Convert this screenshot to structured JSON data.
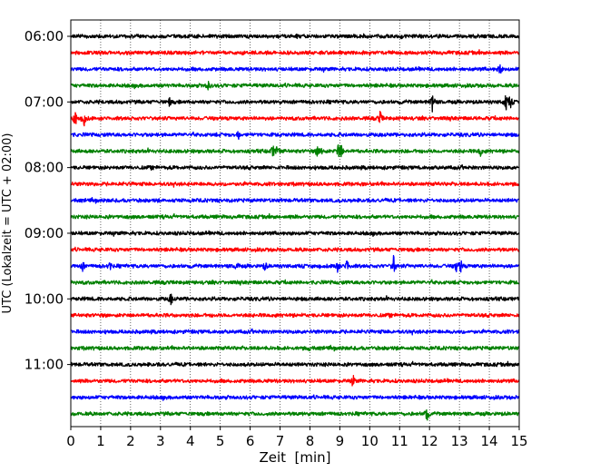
{
  "chart_data": {
    "type": "line",
    "title": "",
    "xlabel": "Zeit  [min]",
    "ylabel": "UTC (Lokalzeit = UTC + 02:00)",
    "xlim": [
      0,
      15
    ],
    "x_ticks": [
      "0",
      "1",
      "2",
      "3",
      "4",
      "5",
      "6",
      "7",
      "8",
      "9",
      "10",
      "11",
      "12",
      "13",
      "14",
      "15"
    ],
    "y_ticks": [
      "06:00",
      "07:00",
      "08:00",
      "09:00",
      "10:00",
      "11:00"
    ],
    "grid": "vertical dotted",
    "trace_colors": [
      "#000000",
      "#ff0000",
      "#0000ff",
      "#008000"
    ],
    "series": [
      {
        "start": "06:00",
        "color": "#000000",
        "events": []
      },
      {
        "start": "06:15",
        "color": "#ff0000",
        "events": []
      },
      {
        "start": "06:30",
        "color": "#0000ff",
        "events": [
          {
            "x": 14.35,
            "amp": 7
          }
        ]
      },
      {
        "start": "06:45",
        "color": "#008000",
        "events": [
          {
            "x": 4.6,
            "amp": 6
          }
        ]
      },
      {
        "start": "07:00",
        "color": "#000000",
        "events": [
          {
            "x": 3.3,
            "amp": 5
          },
          {
            "x": 12.1,
            "amp": 14
          },
          {
            "x": 14.55,
            "amp": 11
          },
          {
            "x": 14.7,
            "amp": 9
          }
        ]
      },
      {
        "start": "07:15",
        "color": "#ff0000",
        "events": [
          {
            "x": 0.15,
            "amp": 10
          },
          {
            "x": 0.45,
            "amp": 9
          },
          {
            "x": 10.35,
            "amp": 8
          }
        ]
      },
      {
        "start": "07:30",
        "color": "#0000ff",
        "events": [
          {
            "x": 5.6,
            "amp": 5
          }
        ]
      },
      {
        "start": "07:45",
        "color": "#008000",
        "events": [
          {
            "x": 6.75,
            "amp": 8
          },
          {
            "x": 6.9,
            "amp": 6
          },
          {
            "x": 8.25,
            "amp": 6
          },
          {
            "x": 8.4,
            "amp": 7
          },
          {
            "x": 8.95,
            "amp": 10
          },
          {
            "x": 9.05,
            "amp": 8
          },
          {
            "x": 13.7,
            "amp": 6
          }
        ]
      },
      {
        "start": "08:00",
        "color": "#000000",
        "events": []
      },
      {
        "start": "08:15",
        "color": "#ff0000",
        "events": []
      },
      {
        "start": "08:30",
        "color": "#0000ff",
        "events": []
      },
      {
        "start": "08:45",
        "color": "#008000",
        "events": []
      },
      {
        "start": "09:00",
        "color": "#000000",
        "events": []
      },
      {
        "start": "09:15",
        "color": "#ff0000",
        "events": []
      },
      {
        "start": "09:30",
        "color": "#0000ff",
        "events": [
          {
            "x": 0.4,
            "amp": 5
          },
          {
            "x": 1.3,
            "amp": 5
          },
          {
            "x": 5.55,
            "amp": 6
          },
          {
            "x": 6.5,
            "amp": 5
          },
          {
            "x": 8.9,
            "amp": 11
          },
          {
            "x": 9.25,
            "amp": 9
          },
          {
            "x": 10.8,
            "amp": 12
          },
          {
            "x": 12.9,
            "amp": 7
          },
          {
            "x": 13.05,
            "amp": 8
          }
        ]
      },
      {
        "start": "09:45",
        "color": "#008000",
        "events": []
      },
      {
        "start": "10:00",
        "color": "#000000",
        "events": [
          {
            "x": 3.35,
            "amp": 7
          }
        ]
      },
      {
        "start": "10:15",
        "color": "#ff0000",
        "events": []
      },
      {
        "start": "10:30",
        "color": "#0000ff",
        "events": []
      },
      {
        "start": "10:45",
        "color": "#008000",
        "events": [
          {
            "x": 8.0,
            "amp": 3
          }
        ]
      },
      {
        "start": "11:00",
        "color": "#000000",
        "events": []
      },
      {
        "start": "11:15",
        "color": "#ff0000",
        "events": [
          {
            "x": 9.45,
            "amp": 6
          }
        ]
      },
      {
        "start": "11:30",
        "color": "#0000ff",
        "events": []
      },
      {
        "start": "11:45",
        "color": "#008000",
        "events": [
          {
            "x": 11.9,
            "amp": 12
          }
        ]
      }
    ]
  }
}
